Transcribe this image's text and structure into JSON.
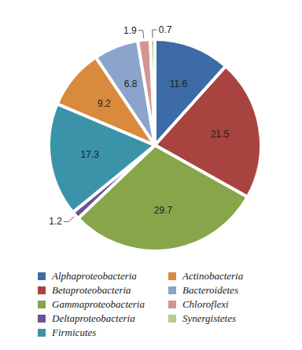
{
  "chart_data": {
    "type": "pie",
    "categories": [
      "Alphaproteobacteria",
      "Betaproteobacteria",
      "Gammaproteobacteria",
      "Deltaproteobacteria",
      "Firmicutes",
      "Actinobacteria",
      "Bacteroidetes",
      "Chloroflexi",
      "Synergistetes"
    ],
    "values": [
      11.6,
      21.5,
      29.7,
      1.2,
      17.3,
      9.2,
      6.8,
      1.9,
      0.7
    ],
    "colors": [
      "#3d6ba8",
      "#a84340",
      "#87a64a",
      "#6d5194",
      "#3b93aa",
      "#d98a3d",
      "#8ba4cb",
      "#d39592",
      "#b7cc8d"
    ],
    "data_labels": true,
    "legend": "bottom"
  }
}
